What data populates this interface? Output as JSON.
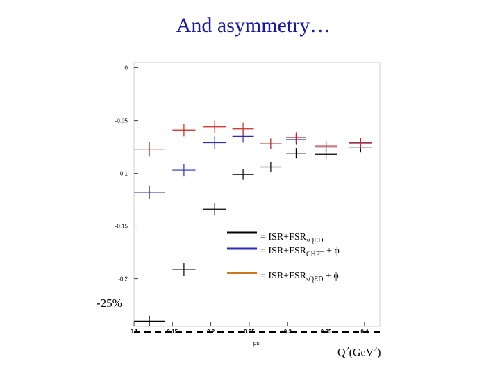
{
  "title": "And asymmetry…",
  "x_axis_name": "psi",
  "x_unit": {
    "base": "Q",
    "sup1": "2",
    "mid": "(GeV",
    "sup2": "2",
    "end": ")"
  },
  "reference_label": "-25%",
  "legend": [
    {
      "text": "= ISR+FSR",
      "sub": "sQED",
      "suffix": "",
      "color": "#000000"
    },
    {
      "text": "= ISR+FSR",
      "sub": "CHPT",
      "suffix": " + ϕ",
      "color": "#2c2cb4"
    },
    {
      "text": "= ISR+FSR",
      "sub": "sQED",
      "suffix": " + ϕ",
      "color": "#c8781a"
    }
  ],
  "chart_data": {
    "type": "scatter",
    "xlim": [
      0.1,
      0.42
    ],
    "ylim": [
      -0.245,
      0.005
    ],
    "x_ticks": [
      {
        "value": 0.1,
        "label": "0.1"
      },
      {
        "value": 0.15,
        "label": "0.15"
      },
      {
        "value": 0.2,
        "label": "0.2"
      },
      {
        "value": 0.25,
        "label": "0.25"
      },
      {
        "value": 0.3,
        "label": "0.3"
      },
      {
        "value": 0.35,
        "label": "0.35"
      },
      {
        "value": 0.4,
        "label": "0.4"
      }
    ],
    "y_ticks": [
      {
        "value": 0,
        "label": "0"
      },
      {
        "value": -0.05,
        "label": "-0.05"
      },
      {
        "value": -0.1,
        "label": "-0.1"
      },
      {
        "value": -0.15,
        "label": "-0.15"
      },
      {
        "value": -0.2,
        "label": "-0.2"
      }
    ],
    "reference_line": {
      "y": -0.25
    },
    "series": [
      {
        "color": "#000000",
        "points": [
          {
            "x": 0.12,
            "y": -0.24,
            "xerr": 0.02,
            "yerr": 0.005
          },
          {
            "x": 0.165,
            "y": -0.191,
            "xerr": 0.015,
            "yerr": 0.006
          },
          {
            "x": 0.205,
            "y": -0.134,
            "xerr": 0.015,
            "yerr": 0.006
          },
          {
            "x": 0.242,
            "y": -0.101,
            "xerr": 0.014,
            "yerr": 0.005
          },
          {
            "x": 0.278,
            "y": -0.094,
            "xerr": 0.014,
            "yerr": 0.005
          },
          {
            "x": 0.311,
            "y": -0.081,
            "xerr": 0.013,
            "yerr": 0.005
          },
          {
            "x": 0.35,
            "y": -0.082,
            "xerr": 0.014,
            "yerr": 0.005
          },
          {
            "x": 0.395,
            "y": -0.075,
            "xerr": 0.015,
            "yerr": 0.005
          }
        ]
      },
      {
        "color": "#2c2cb4",
        "points": [
          {
            "x": 0.12,
            "y": -0.118,
            "xerr": 0.02,
            "yerr": 0.006
          },
          {
            "x": 0.165,
            "y": -0.097,
            "xerr": 0.015,
            "yerr": 0.006
          },
          {
            "x": 0.205,
            "y": -0.071,
            "xerr": 0.015,
            "yerr": 0.006
          },
          {
            "x": 0.242,
            "y": -0.065,
            "xerr": 0.014,
            "yerr": 0.006
          },
          {
            "x": 0.278,
            "y": -0.072,
            "xerr": 0.014,
            "yerr": 0.005
          },
          {
            "x": 0.311,
            "y": -0.068,
            "xerr": 0.013,
            "yerr": 0.005
          },
          {
            "x": 0.35,
            "y": -0.075,
            "xerr": 0.014,
            "yerr": 0.005
          },
          {
            "x": 0.395,
            "y": -0.072,
            "xerr": 0.015,
            "yerr": 0.005
          }
        ]
      },
      {
        "color": "#c8281e",
        "points": [
          {
            "x": 0.12,
            "y": -0.077,
            "xerr": 0.02,
            "yerr": 0.007
          },
          {
            "x": 0.165,
            "y": -0.059,
            "xerr": 0.015,
            "yerr": 0.006
          },
          {
            "x": 0.205,
            "y": -0.056,
            "xerr": 0.015,
            "yerr": 0.006
          },
          {
            "x": 0.242,
            "y": -0.058,
            "xerr": 0.014,
            "yerr": 0.006
          },
          {
            "x": 0.278,
            "y": -0.072,
            "xerr": 0.014,
            "yerr": 0.005
          },
          {
            "x": 0.311,
            "y": -0.066,
            "xerr": 0.013,
            "yerr": 0.005
          },
          {
            "x": 0.35,
            "y": -0.074,
            "xerr": 0.014,
            "yerr": 0.005
          },
          {
            "x": 0.395,
            "y": -0.071,
            "xerr": 0.015,
            "yerr": 0.005
          }
        ]
      }
    ]
  }
}
